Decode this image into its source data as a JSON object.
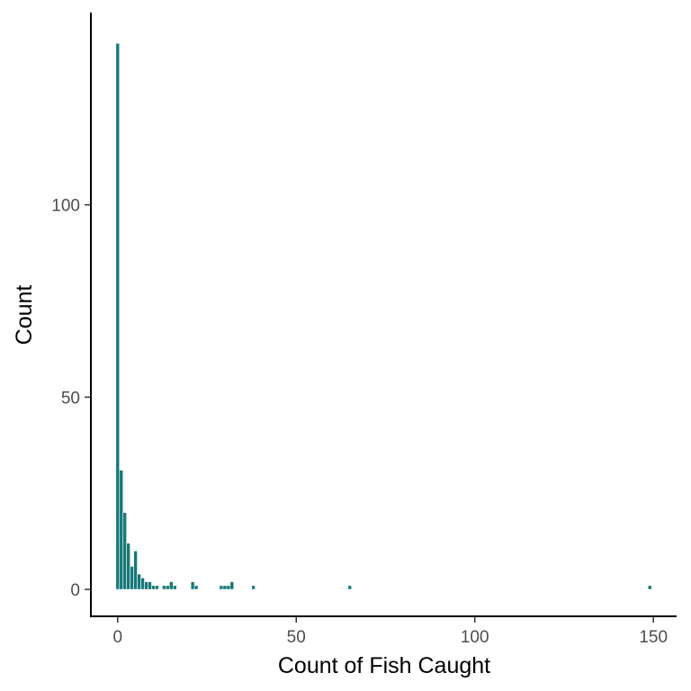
{
  "chart_data": {
    "type": "bar",
    "title": "",
    "xlabel": "Count of Fish Caught",
    "ylabel": "Count",
    "xlim": [
      -7.5,
      156.5
    ],
    "ylim": [
      -7,
      150
    ],
    "x_ticks": [
      0,
      50,
      100,
      150
    ],
    "y_ticks": [
      0,
      50,
      100
    ],
    "grid": false,
    "bar_color": "#187878",
    "x": [
      0,
      1,
      2,
      3,
      4,
      5,
      6,
      7,
      8,
      9,
      10,
      11,
      13,
      14,
      15,
      16,
      21,
      22,
      29,
      30,
      31,
      32,
      38,
      65,
      149
    ],
    "values": [
      142,
      31,
      20,
      12,
      6,
      10,
      4,
      3,
      2,
      2,
      1,
      1,
      1,
      1,
      2,
      1,
      2,
      1,
      1,
      1,
      1,
      2,
      1,
      1,
      1
    ]
  }
}
